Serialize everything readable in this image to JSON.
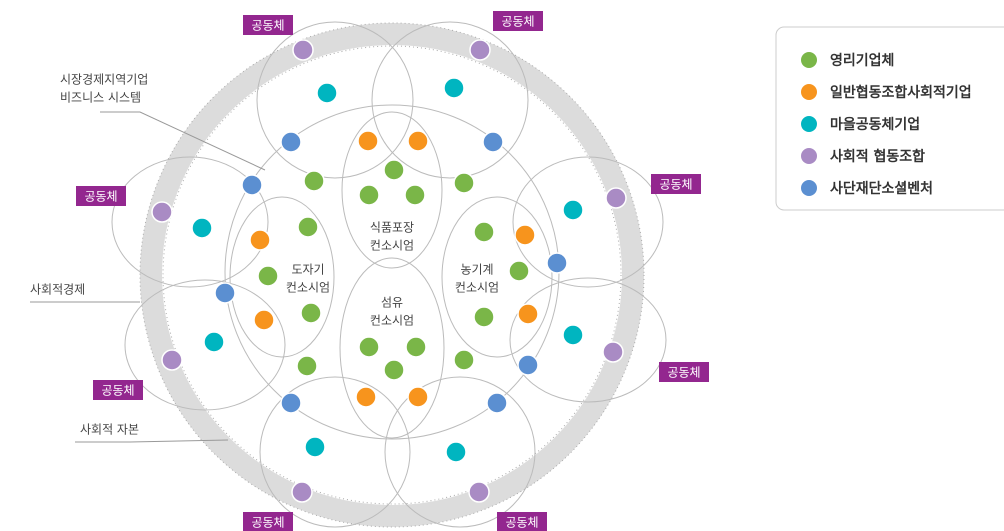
{
  "diagram": {
    "legend": [
      {
        "label": "영리기업체",
        "color": "#7ab648"
      },
      {
        "label": "일반협동조합사회적기업",
        "color": "#f7941d"
      },
      {
        "label": "마을공동체기업",
        "color": "#00b5c0"
      },
      {
        "label": "사회적 협동조합",
        "color": "#a98bc4"
      },
      {
        "label": "사단재단소셜벤처",
        "color": "#5b8fd1"
      }
    ],
    "community_tags": [
      "공동체",
      "공동체",
      "공동체",
      "공동체",
      "공동체",
      "공동체",
      "공동체",
      "공동체"
    ],
    "annotations": [
      {
        "lines": [
          "시장경제지역기업",
          "비즈니스 시스템"
        ]
      },
      {
        "lines": [
          "사회적경제"
        ]
      },
      {
        "lines": [
          "사회적 자본"
        ]
      }
    ],
    "consortia": [
      {
        "lines": [
          "식품포장",
          "컨소시엄"
        ]
      },
      {
        "lines": [
          "도자기",
          "컨소시엄"
        ]
      },
      {
        "lines": [
          "농기계",
          "컨소시엄"
        ]
      },
      {
        "lines": [
          "섬유",
          "컨소시엄"
        ]
      }
    ]
  }
}
